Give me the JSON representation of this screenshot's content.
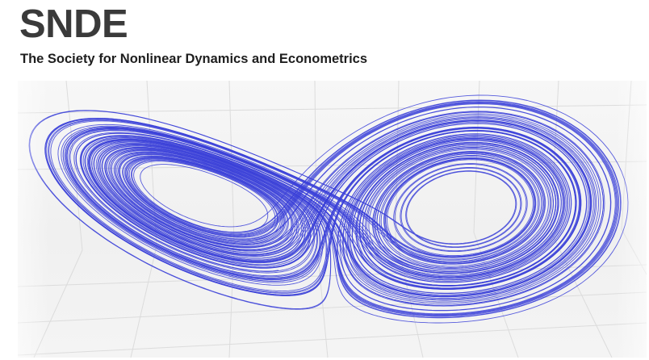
{
  "brand": {
    "name": "SNDE",
    "full_name": "The Society for Nonlinear Dynamics and Econometrics"
  },
  "attractor_image": {
    "subject": "lorenz-attractor",
    "line_color": "#3a3fd8",
    "background_color": "#f2f2f2",
    "grid_color": "#dcdcdc"
  }
}
